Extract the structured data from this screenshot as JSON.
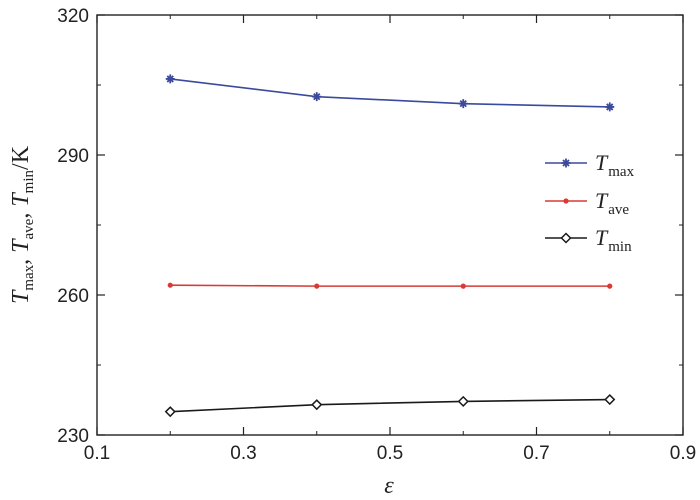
{
  "chart_data": {
    "type": "line",
    "x": [
      0.2,
      0.4,
      0.6,
      0.8
    ],
    "xlim": [
      0.1,
      0.9
    ],
    "ylim": [
      230,
      320
    ],
    "xticks": [
      "0.1",
      "0.3",
      "0.5",
      "0.7",
      "0.9"
    ],
    "yticks": [
      "230",
      "260",
      "290",
      "320"
    ],
    "xlabel": "ε",
    "ylabel": {
      "parts": [
        {
          "main": "T",
          "sub": "max"
        },
        {
          "main": "T",
          "sub": "ave"
        },
        {
          "main": "T",
          "sub": "min"
        }
      ],
      "separator": ",",
      "unit": "/K"
    },
    "grid": false,
    "legend_position": "right",
    "series": [
      {
        "name_main": "T",
        "name_sub": "max",
        "values": [
          306.3,
          302.5,
          301.0,
          300.3
        ],
        "color": "#3b4a9c",
        "marker": "plus"
      },
      {
        "name_main": "T",
        "name_sub": "ave",
        "values": [
          262.1,
          261.9,
          261.9,
          261.9
        ],
        "color": "#d93a35",
        "marker": "dot"
      },
      {
        "name_main": "T",
        "name_sub": "min",
        "values": [
          235.0,
          236.5,
          237.2,
          237.6
        ],
        "color": "#1a1a1a",
        "marker": "diamond"
      }
    ]
  }
}
